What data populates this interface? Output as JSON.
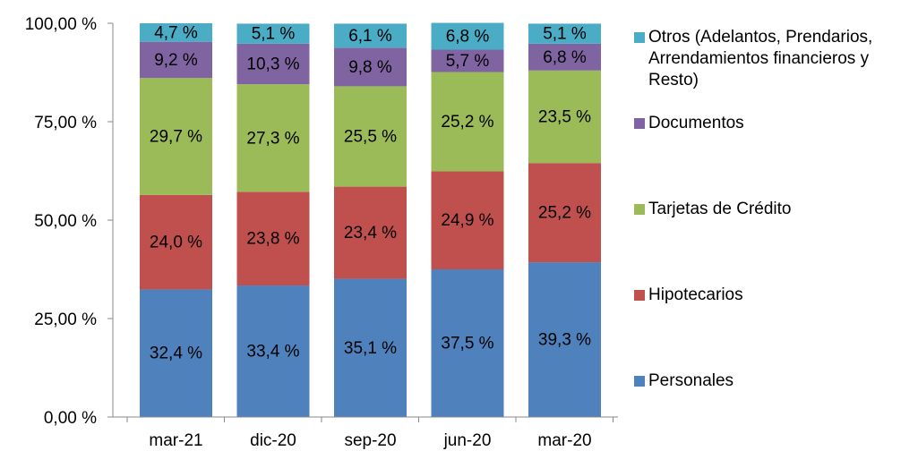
{
  "chart_data": {
    "type": "bar",
    "stacked": true,
    "categories": [
      "mar-21",
      "dic-20",
      "sep-20",
      "jun-20",
      "mar-20"
    ],
    "ylim": [
      0,
      100
    ],
    "yticks": [
      "0,00 %",
      "25,00 %",
      "50,00 %",
      "75,00 %",
      "100,00 %"
    ],
    "ytick_values": [
      0,
      25,
      50,
      75,
      100
    ],
    "grid": false,
    "legend_position": "right",
    "series": [
      {
        "name": "Personales",
        "color": "#4F81BD",
        "values": [
          32.4,
          33.4,
          35.1,
          37.5,
          39.3
        ],
        "labels": [
          "32,4 %",
          "33,4 %",
          "35,1 %",
          "37,5 %",
          "39,3 %"
        ]
      },
      {
        "name": "Hipotecarios",
        "color": "#C0504D",
        "values": [
          24.0,
          23.8,
          23.4,
          24.9,
          25.2
        ],
        "labels": [
          "24,0 %",
          "23,8 %",
          "23,4 %",
          "24,9 %",
          "25,2 %"
        ]
      },
      {
        "name": "Tarjetas de Crédito",
        "color": "#9BBB59",
        "values": [
          29.7,
          27.3,
          25.5,
          25.2,
          23.5
        ],
        "labels": [
          "29,7 %",
          "27,3 %",
          "25,5 %",
          "25,2 %",
          "23,5 %"
        ]
      },
      {
        "name": "Documentos",
        "color": "#8064A2",
        "values": [
          9.2,
          10.3,
          9.8,
          5.7,
          6.8
        ],
        "labels": [
          "9,2 %",
          "10,3 %",
          "9,8 %",
          "5,7 %",
          "6,8 %"
        ]
      },
      {
        "name": "Otros (Adelantos, Prendarios, Arrendamientos financieros y Resto)",
        "color": "#4BACC6",
        "values": [
          4.7,
          5.1,
          6.1,
          6.8,
          5.1
        ],
        "labels": [
          "4,7 %",
          "5,1 %",
          "6,1 %",
          "6,8 %",
          "5,1 %"
        ]
      }
    ]
  }
}
